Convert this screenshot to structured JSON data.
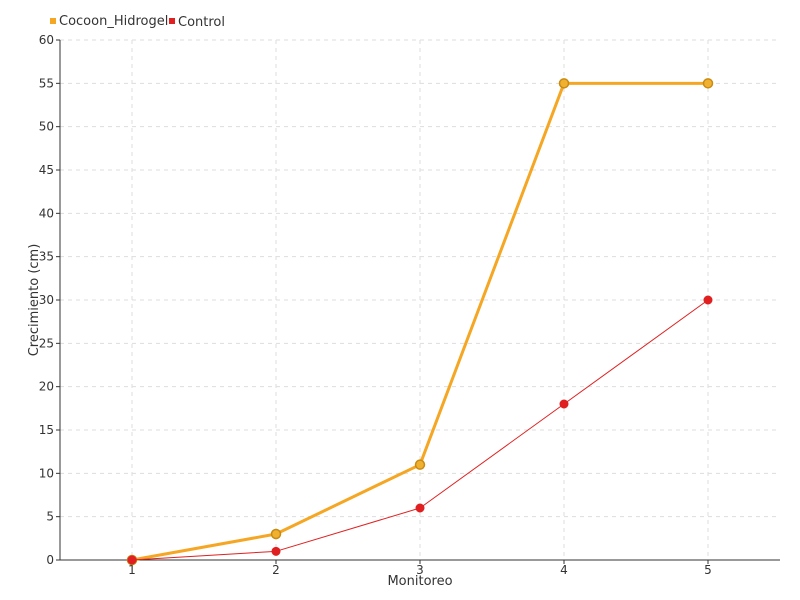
{
  "chart_data": {
    "type": "line",
    "title": "",
    "xlabel": "Monitoreo",
    "ylabel": "Crecimiento (cm)",
    "categories": [
      "1",
      "2",
      "3",
      "4",
      "5"
    ],
    "ylim": [
      0,
      60
    ],
    "yticks": [
      "0",
      "5",
      "10",
      "15",
      "20",
      "25",
      "30",
      "35",
      "40",
      "45",
      "50",
      "55",
      "60"
    ],
    "grid": true,
    "legend_position": "top-left",
    "series": [
      {
        "name": "Cocoon_Hidrogel",
        "values": [
          0,
          3,
          11,
          55,
          55
        ],
        "color": "#f5a623"
      },
      {
        "name": "Control",
        "values": [
          0,
          1,
          6,
          18,
          30
        ],
        "color": "#e02020"
      }
    ]
  }
}
